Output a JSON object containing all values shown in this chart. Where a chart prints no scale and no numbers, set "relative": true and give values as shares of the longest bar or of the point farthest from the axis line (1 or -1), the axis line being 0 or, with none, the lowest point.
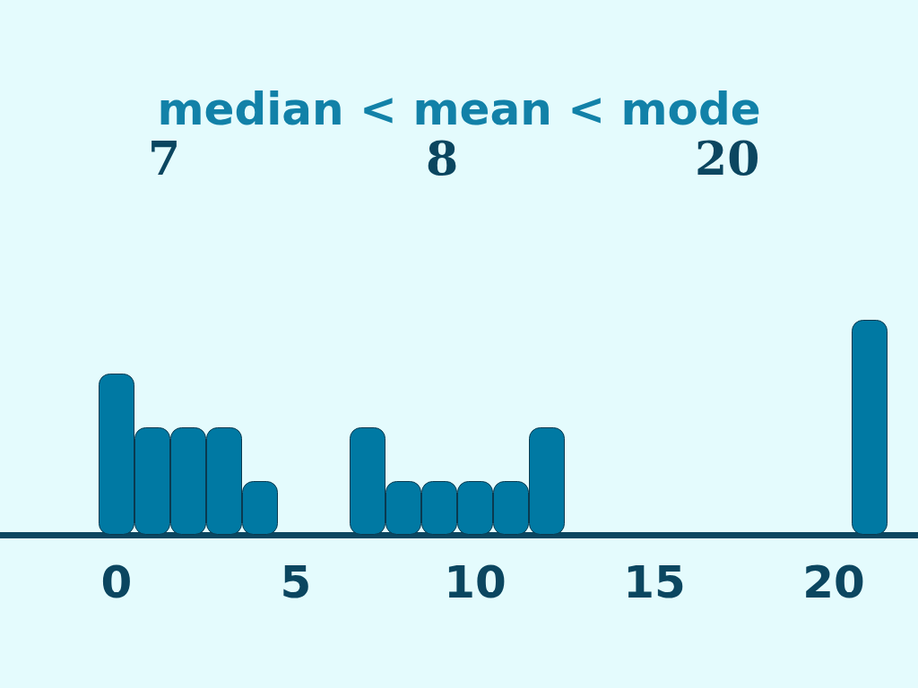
{
  "chart_data": {
    "type": "bar",
    "title": "median < mean < mode",
    "annotations": [
      "7",
      "8",
      "20"
    ],
    "x": [
      0,
      1,
      2,
      3,
      4,
      7,
      8,
      9,
      10,
      11,
      12,
      21
    ],
    "values": [
      0.75,
      0.5,
      0.5,
      0.5,
      0.25,
      0.5,
      0.25,
      0.25,
      0.25,
      0.25,
      0.5,
      1
    ],
    "color": "#0079a3",
    "relative": true,
    "xlim": [
      -3.25,
      22.35
    ],
    "xticks": [
      0,
      5,
      10,
      15,
      20
    ],
    "grid": false
  }
}
